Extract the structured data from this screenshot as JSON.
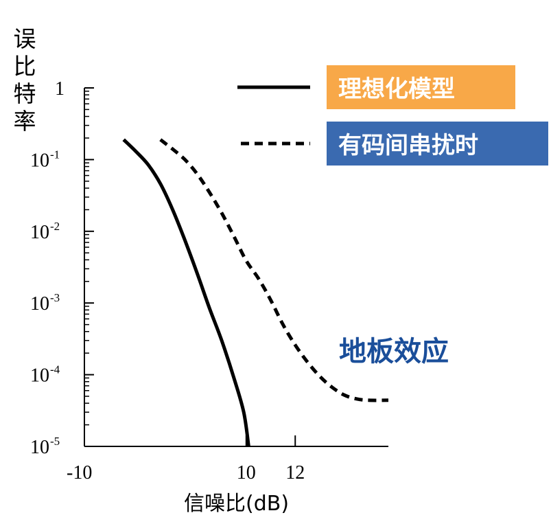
{
  "chart_data": {
    "type": "line",
    "title": "",
    "ylabel": "误比特率",
    "xlabel": "信噪比(dB)",
    "x_ticks": [
      {
        "value": 10,
        "label": "10"
      },
      {
        "value": 12,
        "label": "12"
      }
    ],
    "x_extra_label": "-10",
    "y_scale": "log",
    "y_ticks": [
      {
        "value": 1,
        "base": "1",
        "exp": ""
      },
      {
        "value": 0.1,
        "base": "10",
        "exp": "-1"
      },
      {
        "value": 0.01,
        "base": "10",
        "exp": "-2"
      },
      {
        "value": 0.001,
        "base": "10",
        "exp": "-3"
      },
      {
        "value": 0.0001,
        "base": "10",
        "exp": "-4"
      },
      {
        "value": 1e-05,
        "base": "10",
        "exp": "-5"
      }
    ],
    "xlim": [
      3.4,
      15.8
    ],
    "ylim": [
      1e-05,
      1
    ],
    "grid": false,
    "legend_position": "top-right",
    "series": [
      {
        "name": "理想化模型",
        "style": "solid",
        "color": "#000000",
        "legend_color": "#f8a848",
        "points": [
          [
            5.0,
            0.19
          ],
          [
            5.5,
            0.13
          ],
          [
            6.0,
            0.085
          ],
          [
            6.5,
            0.046
          ],
          [
            7.0,
            0.02
          ],
          [
            7.5,
            0.0075
          ],
          [
            8.0,
            0.0026
          ],
          [
            8.5,
            0.00085
          ],
          [
            9.0,
            0.0003
          ],
          [
            9.5,
            9e-05
          ],
          [
            9.9,
            3e-05
          ],
          [
            10.1,
            1e-05
          ]
        ]
      },
      {
        "name": "有码间串扰时",
        "style": "dashed",
        "color": "#000000",
        "legend_color": "#3a6ab0",
        "points": [
          [
            6.5,
            0.19
          ],
          [
            7.0,
            0.14
          ],
          [
            7.5,
            0.1
          ],
          [
            8.0,
            0.063
          ],
          [
            8.5,
            0.035
          ],
          [
            9.0,
            0.018
          ],
          [
            9.5,
            0.0085
          ],
          [
            10.0,
            0.0039
          ],
          [
            10.5,
            0.0022
          ],
          [
            11.0,
            0.0011
          ],
          [
            11.5,
            0.0005
          ],
          [
            12.0,
            0.00026
          ],
          [
            12.5,
            0.00015
          ],
          [
            13.0,
            9.5e-05
          ],
          [
            13.5,
            6.7e-05
          ],
          [
            14.0,
            5.2e-05
          ],
          [
            14.5,
            4.6e-05
          ],
          [
            15.0,
            4.4e-05
          ],
          [
            15.8,
            4.4e-05
          ]
        ]
      }
    ],
    "annotations": [
      {
        "text": "地板效应",
        "color": "#1a4e9a"
      }
    ]
  }
}
